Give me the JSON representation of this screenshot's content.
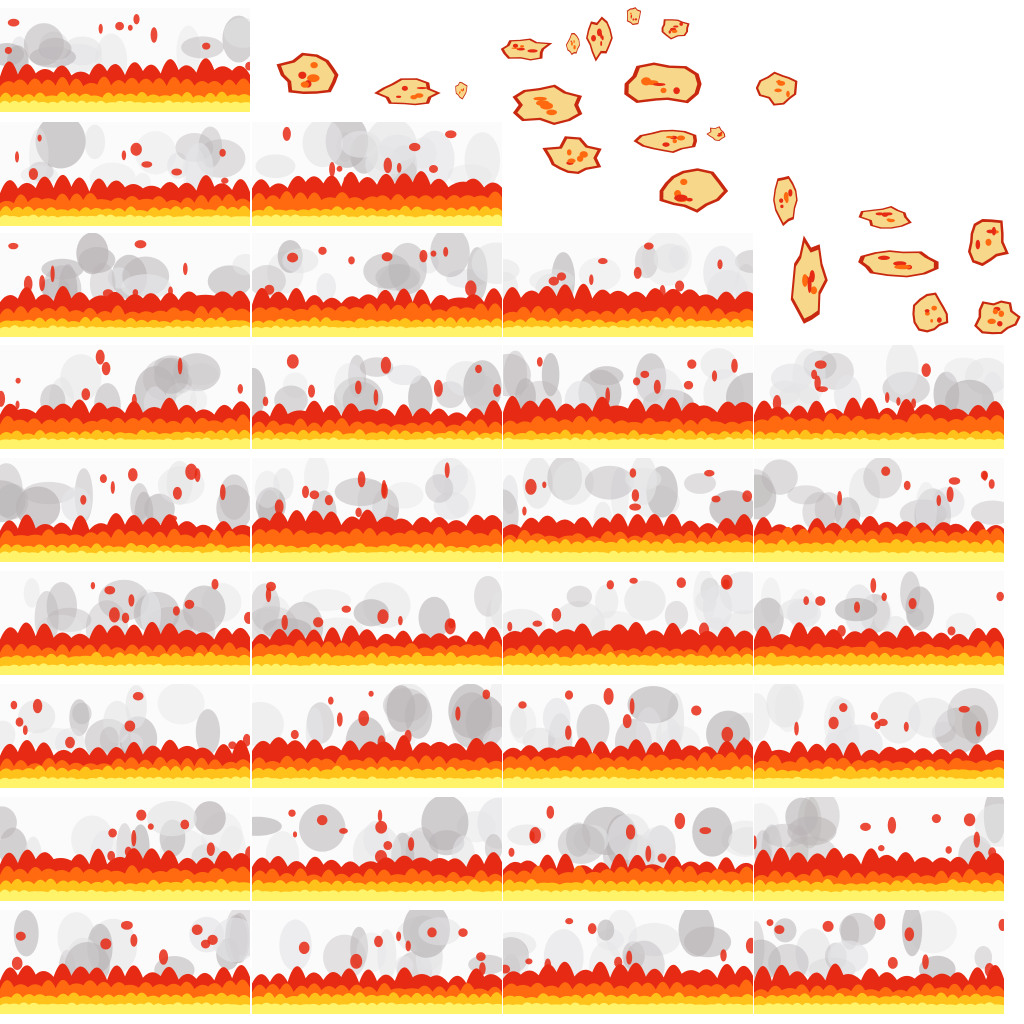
{
  "sheet": {
    "kind": "fire sprite sheet",
    "background": "#ffffff",
    "palette": {
      "smoke": "#e4e4e6",
      "smoke_dark": "#b9b4b6",
      "outer": "#e62a14",
      "mid": "#ff6a10",
      "inner": "#ffc21a",
      "core": "#fff36a",
      "ember_fill": "#f7d88a",
      "ember_edge": "#c8280f"
    },
    "frame_rows": [
      {
        "row": 1,
        "frames": 1
      },
      {
        "row": 2,
        "frames": 2
      },
      {
        "row": 3,
        "frames": 3
      },
      {
        "row": 4,
        "frames": 4
      },
      {
        "row": 5,
        "frames": 4
      },
      {
        "row": 6,
        "frames": 4
      },
      {
        "row": 7,
        "frames": 4
      },
      {
        "row": 8,
        "frames": 4
      },
      {
        "row": 9,
        "frames": 4
      }
    ],
    "total_flame_frames": 30,
    "ember_sprites": 22
  }
}
